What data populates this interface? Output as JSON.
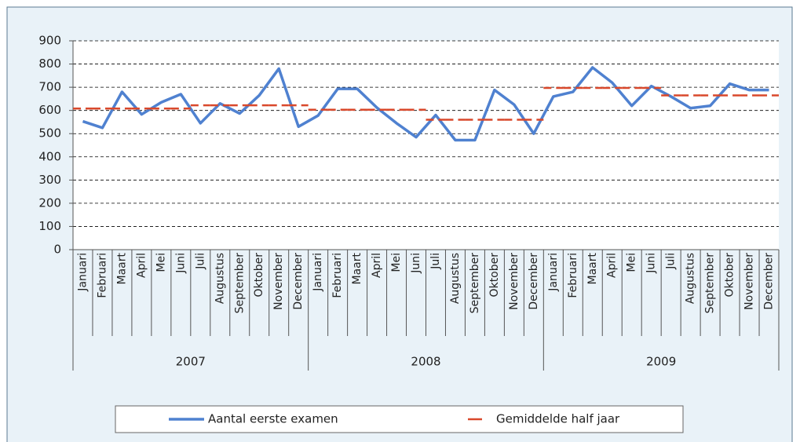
{
  "chart_data": {
    "type": "line",
    "categories": [
      "Januari",
      "Februari",
      "Maart",
      "April",
      "Mei",
      "Juni",
      "Juli",
      "Augustus",
      "September",
      "Oktober",
      "November",
      "December",
      "Januari",
      "Februari",
      "Maart",
      "April",
      "Mei",
      "Juni",
      "Juli",
      "Augustus",
      "September",
      "Oktober",
      "November",
      "December",
      "Januari",
      "Februari",
      "Maart",
      "April",
      "Mei",
      "Juni",
      "Juli",
      "Augustus",
      "September",
      "Oktober",
      "November",
      "December"
    ],
    "category_groups": [
      "2007",
      "2008",
      "2009"
    ],
    "series": [
      {
        "name": "Aantal eerste examen",
        "color": "#4f81d0",
        "style": "solid",
        "values": [
          553,
          525,
          680,
          583,
          635,
          670,
          545,
          630,
          587,
          665,
          780,
          530,
          578,
          693,
          693,
          612,
          545,
          485,
          580,
          472,
          472,
          688,
          625,
          500,
          660,
          680,
          785,
          720,
          620,
          705,
          660,
          610,
          620,
          715,
          688,
          688
        ]
      },
      {
        "name": "Gemiddelde half jaar",
        "color": "#d9482b",
        "style": "dashed",
        "values": [
          608,
          608,
          608,
          608,
          608,
          608,
          622,
          622,
          622,
          622,
          622,
          622,
          603,
          603,
          603,
          603,
          603,
          603,
          560,
          560,
          560,
          560,
          560,
          560,
          697,
          697,
          697,
          697,
          697,
          697,
          665,
          665,
          665,
          665,
          665,
          665
        ]
      }
    ],
    "ylim": [
      0,
      900
    ],
    "yticks": [
      0,
      100,
      200,
      300,
      400,
      500,
      600,
      700,
      800,
      900
    ],
    "grid": true
  }
}
